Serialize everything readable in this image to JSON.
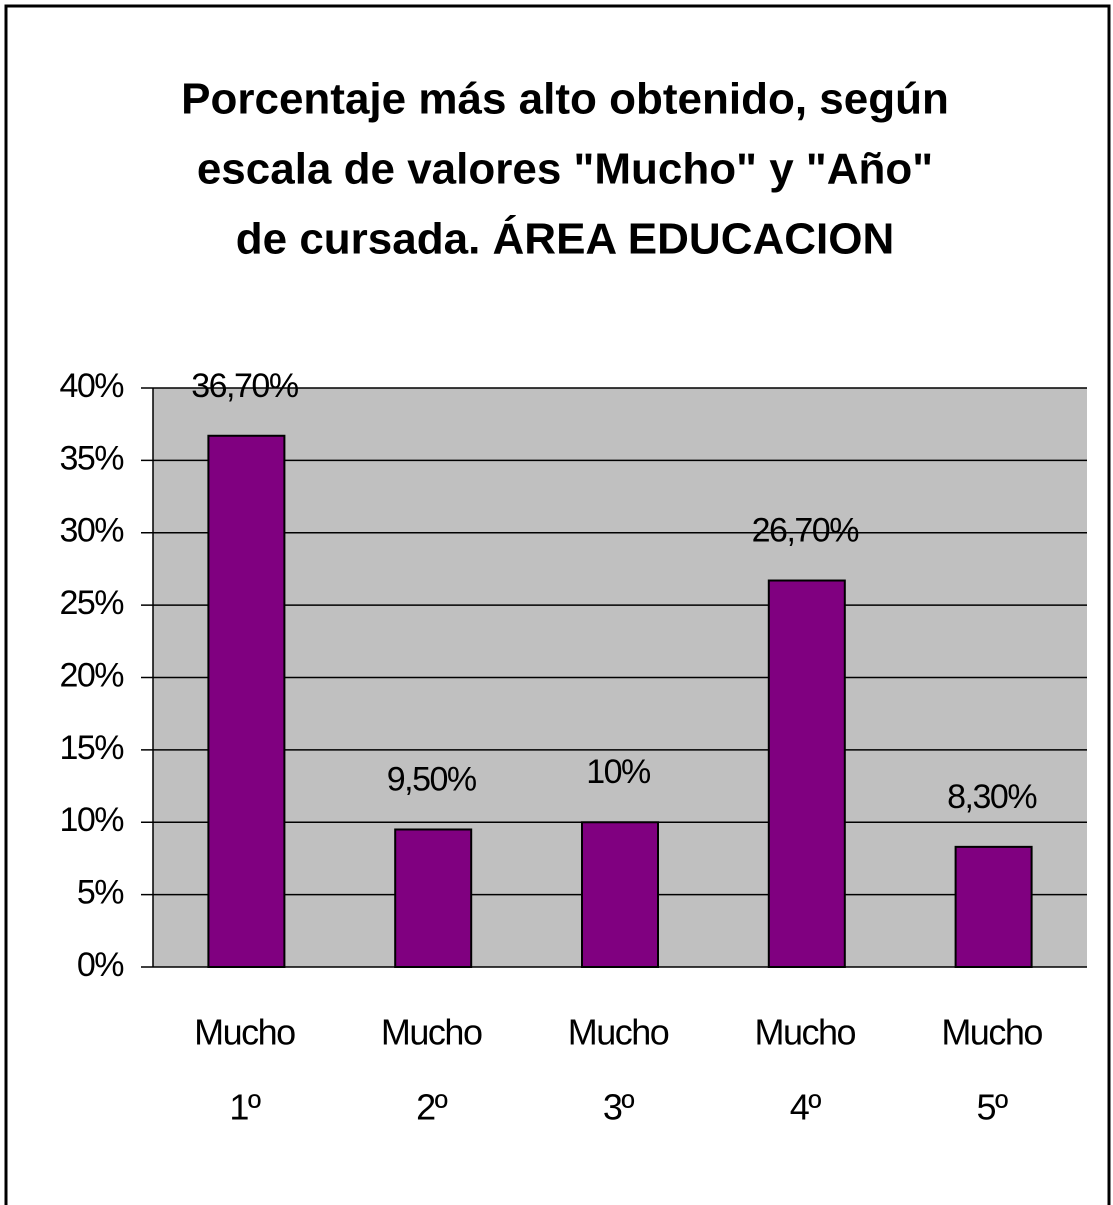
{
  "chart_data": {
    "type": "bar",
    "title": [
      "Porcentaje más alto obtenido, según",
      "escala de valores \"Mucho\" y \"Año\"",
      "de cursada. ÁREA EDUCACION"
    ],
    "categories": [
      [
        "Mucho",
        "1º"
      ],
      [
        "Mucho",
        "2º"
      ],
      [
        "Mucho",
        "3º"
      ],
      [
        "Mucho",
        "4º"
      ],
      [
        "Mucho",
        "5º"
      ]
    ],
    "values": [
      36.7,
      9.5,
      10,
      26.7,
      8.3
    ],
    "value_labels": [
      "36,70%",
      "9,50%",
      "10%",
      "26,70%",
      "8,30%"
    ],
    "color": "#800080",
    "ylim": [
      0,
      40
    ],
    "yticks": [
      {
        "value": 0,
        "label": "0%"
      },
      {
        "value": 5,
        "label": "5%"
      },
      {
        "value": 10,
        "label": "10%"
      },
      {
        "value": 15,
        "label": "15%"
      },
      {
        "value": 20,
        "label": "20%"
      },
      {
        "value": 25,
        "label": "25%"
      },
      {
        "value": 30,
        "label": "30%"
      },
      {
        "value": 35,
        "label": "35%"
      },
      {
        "value": 40,
        "label": "40%"
      }
    ],
    "grid": true
  }
}
